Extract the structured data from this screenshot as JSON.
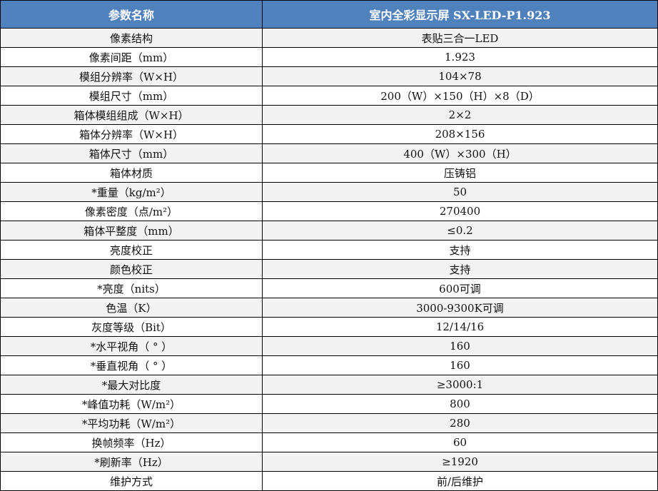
{
  "header": {
    "param": "参数名称",
    "product": "室内全彩显示屏 SX-LED-P1.923"
  },
  "rows": [
    {
      "name": "像素结构",
      "value": "表贴三合一LED"
    },
    {
      "name": "像素间距（mm）",
      "value": "1.923"
    },
    {
      "name": "模组分辨率（W×H）",
      "value": "104×78"
    },
    {
      "name": "模组尺寸（mm）",
      "value": "200（W）×150（H）×8（D）"
    },
    {
      "name": "箱体模组组成（W×H）",
      "value": "2×2"
    },
    {
      "name": "箱体分辨率（W×H）",
      "value": "208×156"
    },
    {
      "name": "箱体尺寸（mm）",
      "value": "400（W）×300（H）"
    },
    {
      "name": "箱体材质",
      "value": "压铸铝"
    },
    {
      "name": "*重量（kg/m²）",
      "value": "50"
    },
    {
      "name": "像素密度（点/m²）",
      "value": "270400"
    },
    {
      "name": "箱体平整度（mm）",
      "value": "≤0.2"
    },
    {
      "name": "亮度校正",
      "value": "支持"
    },
    {
      "name": "颜色校正",
      "value": "支持"
    },
    {
      "name": "*亮度（nits）",
      "value": "600可调"
    },
    {
      "name": "色温（K）",
      "value": "3000-9300K可调"
    },
    {
      "name": "灰度等级（Bit）",
      "value": "12/14/16"
    },
    {
      "name": "*水平视角（ ° ）",
      "value": "160"
    },
    {
      "name": "*垂直视角（ ° ）",
      "value": "160"
    },
    {
      "name": "*最大对比度",
      "value": "≥3000:1"
    },
    {
      "name": "*峰值功耗（W/m²）",
      "value": "800"
    },
    {
      "name": "*平均功耗（W/m²）",
      "value": "280"
    },
    {
      "name": "换帧频率（Hz）",
      "value": "60"
    },
    {
      "name": "*刷新率（Hz）",
      "value": "≥1920"
    },
    {
      "name": "维护方式",
      "value": "前/后维护"
    }
  ],
  "colors": {
    "header_bg": "#4f81bd",
    "row_alt": "#f2f2f2"
  }
}
